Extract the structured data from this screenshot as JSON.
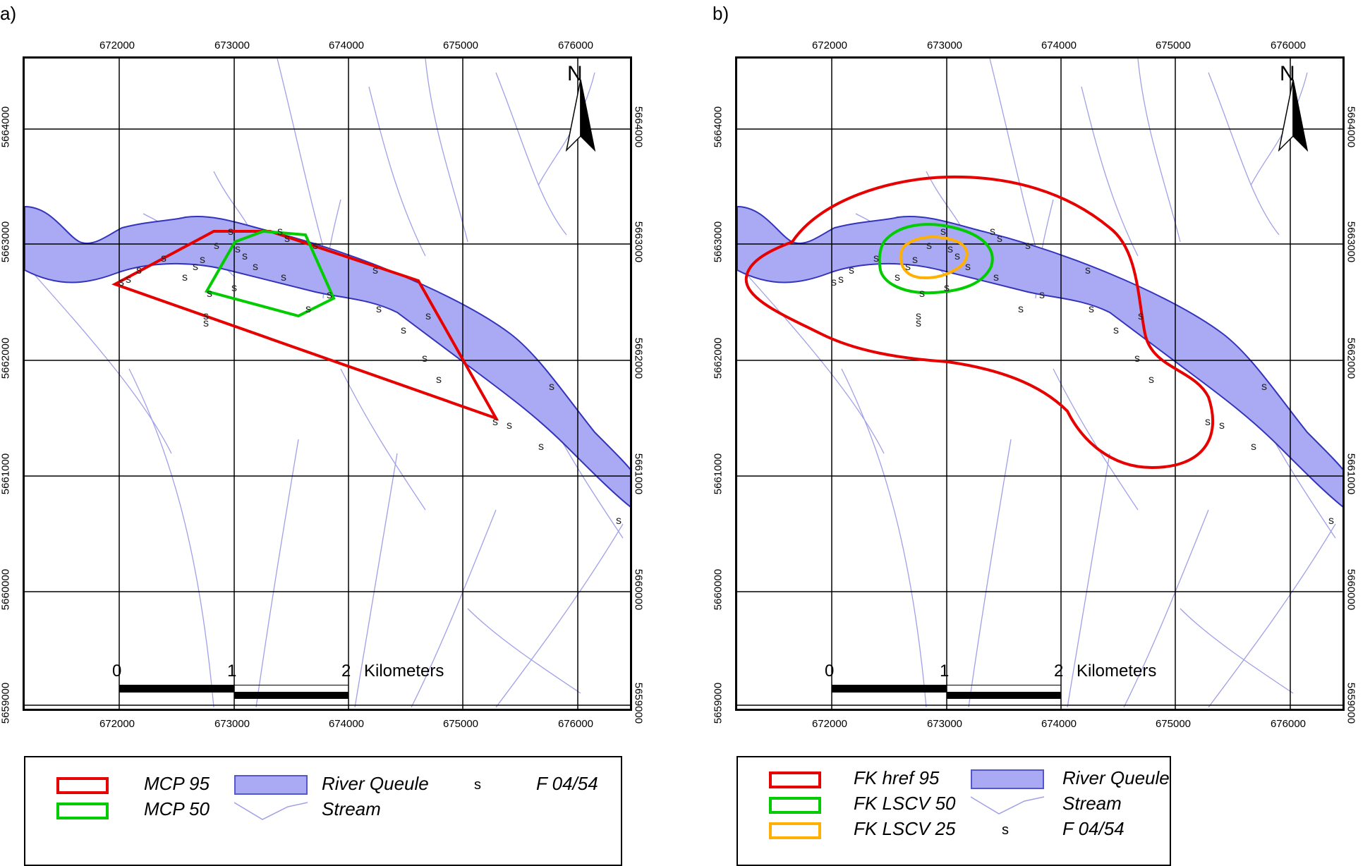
{
  "panels": [
    {
      "id": "a",
      "label": "a)",
      "legend": {
        "items": [
          {
            "key": "mcp95",
            "label": "MCP 95",
            "color": "#e60000",
            "kind": "line"
          },
          {
            "key": "mcp50",
            "label": "MCP 50",
            "color": "#00cc00",
            "kind": "line"
          },
          {
            "key": "river",
            "label": "River Queule",
            "color": "#aaaaf4",
            "kind": "fill"
          },
          {
            "key": "stream",
            "label": "Stream",
            "color": "#a0a0e8",
            "kind": "stream"
          },
          {
            "key": "points",
            "label": "F 04/54",
            "symbol": "s",
            "kind": "symbol"
          }
        ]
      }
    },
    {
      "id": "b",
      "label": "b)",
      "legend": {
        "items": [
          {
            "key": "fkhref95",
            "label": "FK href 95",
            "color": "#e60000",
            "kind": "line"
          },
          {
            "key": "fklscv50",
            "label": "FK LSCV 50",
            "color": "#00cc00",
            "kind": "line"
          },
          {
            "key": "fklscv25",
            "label": "FK LSCV 25",
            "color": "#ffb000",
            "kind": "line"
          },
          {
            "key": "river",
            "label": "River Queule",
            "color": "#aaaaf4",
            "kind": "fill"
          },
          {
            "key": "stream",
            "label": "Stream",
            "color": "#a0a0e8",
            "kind": "stream"
          },
          {
            "key": "points",
            "label": "F 04/54",
            "symbol": "s",
            "kind": "symbol"
          }
        ]
      }
    }
  ],
  "axes": {
    "x_ticks": [
      "672000",
      "673000",
      "674000",
      "675000",
      "676000"
    ],
    "y_ticks": [
      "5664000",
      "5663000",
      "5662000",
      "5661000",
      "5660000",
      "5659000"
    ]
  },
  "north_arrow": {
    "label": "N",
    "icon": "north-arrow-icon"
  },
  "scale_bar": {
    "labels": [
      "0",
      "1",
      "2"
    ],
    "unit": "Kilometers"
  },
  "colors": {
    "river_fill": "#aaaaf4",
    "river_edge": "#3333bb",
    "stream": "#a0a0e8",
    "grid": "#000000"
  }
}
